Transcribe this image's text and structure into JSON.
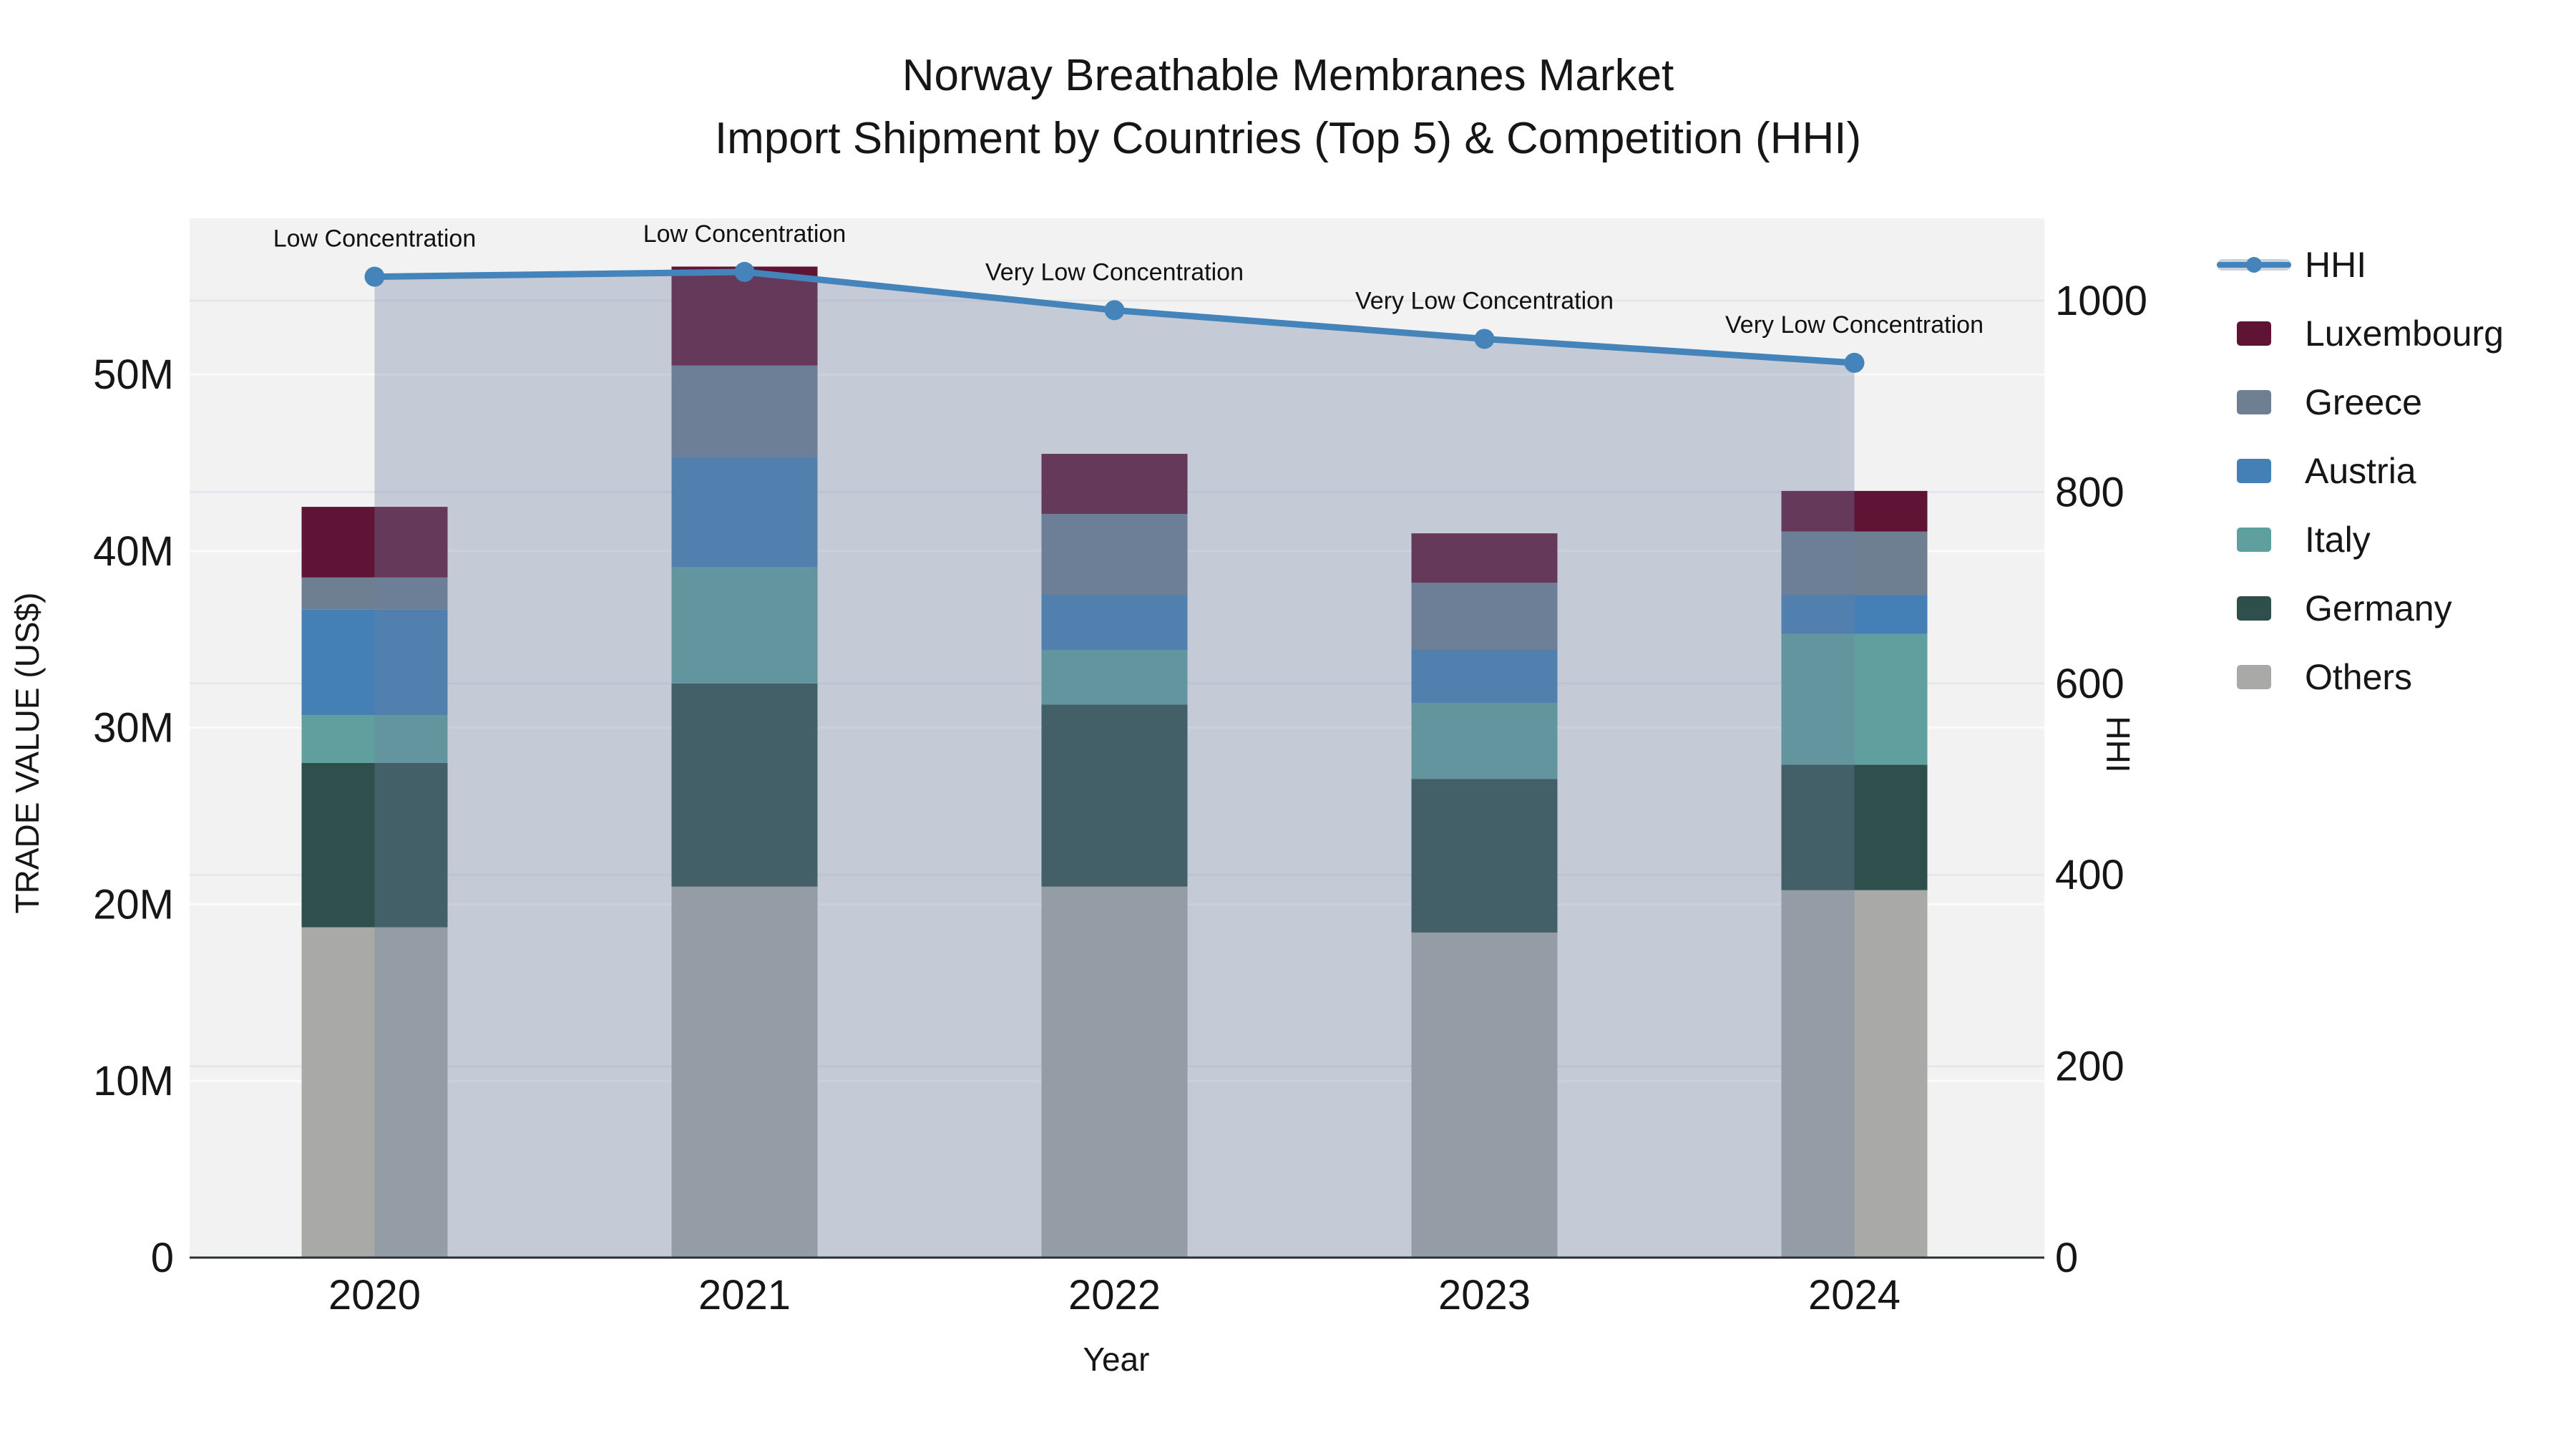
{
  "title": {
    "line1": "Norway Breathable Membranes Market",
    "line2": "Import Shipment by Countries (Top 5) & Competition (HHI)"
  },
  "chart_data": {
    "type": "combo-stacked-bar-line",
    "categories": [
      "2020",
      "2021",
      "2022",
      "2023",
      "2024"
    ],
    "bar_value_unit": "million US$",
    "series": [
      {
        "name": "Others",
        "color": "#a9aaa8",
        "values": [
          18.7,
          21.0,
          21.0,
          18.4,
          20.8
        ]
      },
      {
        "name": "Germany",
        "color": "#2e4f4b",
        "values": [
          9.3,
          11.5,
          10.3,
          8.7,
          7.1
        ]
      },
      {
        "name": "Italy",
        "color": "#5fa09f",
        "values": [
          2.7,
          6.6,
          3.1,
          4.3,
          7.4
        ]
      },
      {
        "name": "Austria",
        "color": "#4480b6",
        "values": [
          6.0,
          6.2,
          3.1,
          3.0,
          2.2
        ]
      },
      {
        "name": "Greece",
        "color": "#6e7f91",
        "values": [
          1.8,
          5.2,
          4.6,
          3.8,
          3.6
        ]
      },
      {
        "name": "Luxembourg",
        "color": "#601435",
        "values": [
          4.0,
          5.6,
          3.4,
          2.8,
          2.3
        ]
      }
    ],
    "bar_totals": [
      42.5,
      56.1,
      45.5,
      41.0,
      43.4
    ],
    "line": {
      "name": "HHI",
      "color": "#4484ba",
      "area_fill": "rgba(108,128,160,0.34)",
      "values": [
        1025,
        1030,
        990,
        960,
        935
      ]
    },
    "annotations": [
      "Low Concentration",
      "Low Concentration",
      "Very Low Concentration",
      "Very Low Concentration",
      "Very Low Concentration"
    ],
    "left_axis": {
      "title": "TRADE VALUE (US$)",
      "tick_labels": [
        "0",
        "10M",
        "20M",
        "30M",
        "40M",
        "50M"
      ],
      "tick_values": [
        0,
        10,
        20,
        30,
        40,
        50
      ]
    },
    "right_axis": {
      "title": "HHI",
      "tick_labels": [
        "0",
        "200",
        "400",
        "600",
        "800",
        "1000"
      ],
      "tick_values": [
        0,
        200,
        400,
        600,
        800,
        1000
      ]
    },
    "x_axis": {
      "title": "Year"
    },
    "layout_hints": {
      "plot_bg": "#f2f2f2",
      "grid_left": "#fbfbfb",
      "grid_right": "#e5e7ec",
      "axis_line": "#2a2f36",
      "legend_position": "right"
    }
  },
  "legend": {
    "items": [
      {
        "label": "HHI",
        "type": "line",
        "color": "#4484ba"
      },
      {
        "label": "Luxembourg",
        "type": "swatch",
        "color": "#601435"
      },
      {
        "label": "Greece",
        "type": "swatch",
        "color": "#6e7f91"
      },
      {
        "label": "Austria",
        "type": "swatch",
        "color": "#4480b6"
      },
      {
        "label": "Italy",
        "type": "swatch",
        "color": "#5fa09f"
      },
      {
        "label": "Germany",
        "type": "swatch",
        "color": "#2e4f4b"
      },
      {
        "label": "Others",
        "type": "swatch",
        "color": "#a9aaa8"
      }
    ]
  }
}
